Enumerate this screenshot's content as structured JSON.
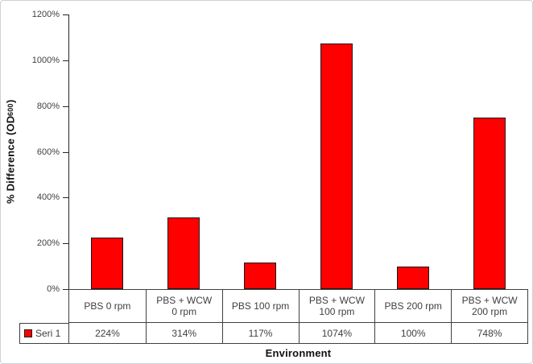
{
  "chart_data": {
    "type": "bar",
    "title": "",
    "xlabel": "Environment",
    "ylabel_prefix": "% Difference (OD ",
    "ylabel_sub": "600",
    "ylabel_suffix": ")",
    "categories": [
      "PBS 0 rpm",
      "PBS + WCW\n0 rpm",
      "PBS 100 rpm",
      "PBS + WCW\n100 rpm",
      "PBS 200 rpm",
      "PBS + WCW\n200 rpm"
    ],
    "series": [
      {
        "name": "Seri 1",
        "values": [
          224,
          314,
          117,
          1074,
          100,
          748
        ],
        "value_labels": [
          "224%",
          "314%",
          "117%",
          "1074%",
          "100%",
          "748%"
        ],
        "color": "#ff0000"
      }
    ],
    "y_ticks": [
      {
        "value": 0,
        "label": "0%"
      },
      {
        "value": 200,
        "label": "200%"
      },
      {
        "value": 400,
        "label": "400%"
      },
      {
        "value": 600,
        "label": "600%"
      },
      {
        "value": 800,
        "label": "800%"
      },
      {
        "value": 1000,
        "label": "1000%"
      },
      {
        "value": 1200,
        "label": "1200%"
      }
    ],
    "ylim": [
      0,
      1200
    ],
    "grid": false,
    "legend_position": "table-row-left"
  },
  "colors": {
    "bar_fill": "#ff0000",
    "bar_border": "#1a1a1a",
    "axis_line": "#262626",
    "table_border": "#404040",
    "text": "#404040",
    "title_text": "#111111",
    "background": "#ffffff",
    "frame_border": "#ccd2d8"
  }
}
